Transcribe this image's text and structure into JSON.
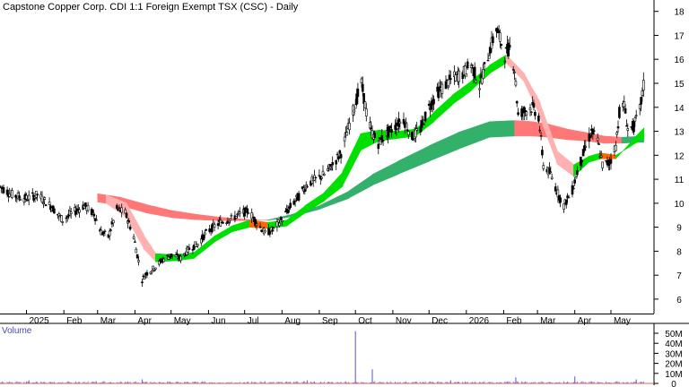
{
  "chart_data": {
    "type": "candlestick",
    "title": "Capstone Copper Corp. CDI 1:1 Foreign Exempt TSX (CSC) - Daily",
    "price_axis": {
      "min": 5.4,
      "max": 18.4,
      "ticks": [
        6,
        7,
        8,
        9,
        10,
        11,
        12,
        13,
        14,
        15,
        16,
        17,
        18
      ]
    },
    "x_axis": {
      "start": "2024-12-10",
      "end": "2026-06-05",
      "month_labels": [
        {
          "label": "2025",
          "date": "2025-01-01"
        },
        {
          "label": "Feb",
          "date": "2025-02-01"
        },
        {
          "label": "Mar",
          "date": "2025-03-01"
        },
        {
          "label": "Apr",
          "date": "2025-04-01"
        },
        {
          "label": "May",
          "date": "2025-05-01"
        },
        {
          "label": "Jun",
          "date": "2025-06-01"
        },
        {
          "label": "Jul",
          "date": "2025-07-01"
        },
        {
          "label": "Aug",
          "date": "2025-08-01"
        },
        {
          "label": "Sep",
          "date": "2025-09-01"
        },
        {
          "label": "Oct",
          "date": "2025-10-01"
        },
        {
          "label": "Nov",
          "date": "2025-11-01"
        },
        {
          "label": "Dec",
          "date": "2025-12-01"
        },
        {
          "label": "2026",
          "date": "2026-01-01"
        },
        {
          "label": "Feb",
          "date": "2026-02-01"
        },
        {
          "label": "Mar",
          "date": "2026-03-01"
        },
        {
          "label": "Apr",
          "date": "2026-04-01"
        },
        {
          "label": "May",
          "date": "2026-05-01"
        }
      ]
    },
    "price_path": [
      [
        "2024-12-10",
        10.7
      ],
      [
        "2024-12-20",
        10.35
      ],
      [
        "2025-01-01",
        10.2
      ],
      [
        "2025-01-10",
        10.35
      ],
      [
        "2025-01-22",
        9.85
      ],
      [
        "2025-01-31",
        9.3
      ],
      [
        "2025-02-08",
        9.6
      ],
      [
        "2025-02-18",
        9.9
      ],
      [
        "2025-02-26",
        9.55
      ],
      [
        "2025-03-04",
        8.8
      ],
      [
        "2025-03-10",
        8.6
      ],
      [
        "2025-03-17",
        9.75
      ],
      [
        "2025-03-24",
        9.6
      ],
      [
        "2025-03-31",
        8.6
      ],
      [
        "2025-04-07",
        6.8
      ],
      [
        "2025-04-10",
        7.05
      ],
      [
        "2025-04-17",
        7.3
      ],
      [
        "2025-04-24",
        7.65
      ],
      [
        "2025-05-02",
        7.85
      ],
      [
        "2025-05-09",
        7.7
      ],
      [
        "2025-05-16",
        8.1
      ],
      [
        "2025-05-23",
        8.3
      ],
      [
        "2025-05-30",
        8.75
      ],
      [
        "2025-06-06",
        9.05
      ],
      [
        "2025-06-13",
        9.25
      ],
      [
        "2025-06-20",
        9.35
      ],
      [
        "2025-06-27",
        9.55
      ],
      [
        "2025-07-04",
        9.7
      ],
      [
        "2025-07-11",
        9.2
      ],
      [
        "2025-07-18",
        8.75
      ],
      [
        "2025-07-25",
        8.9
      ],
      [
        "2025-08-01",
        9.35
      ],
      [
        "2025-08-08",
        9.85
      ],
      [
        "2025-08-15",
        10.3
      ],
      [
        "2025-08-22",
        10.8
      ],
      [
        "2025-08-29",
        11.0
      ],
      [
        "2025-09-05",
        11.2
      ],
      [
        "2025-09-12",
        11.6
      ],
      [
        "2025-09-19",
        12.1
      ],
      [
        "2025-09-26",
        13.3
      ],
      [
        "2025-10-01",
        14.2
      ],
      [
        "2025-10-06",
        15.0
      ],
      [
        "2025-10-10",
        13.8
      ],
      [
        "2025-10-14",
        13.0
      ],
      [
        "2025-10-20",
        12.5
      ],
      [
        "2025-10-27",
        12.9
      ],
      [
        "2025-11-03",
        13.2
      ],
      [
        "2025-11-10",
        13.5
      ],
      [
        "2025-11-17",
        12.75
      ],
      [
        "2025-11-24",
        13.1
      ],
      [
        "2025-12-01",
        14.0
      ],
      [
        "2025-12-08",
        14.6
      ],
      [
        "2025-12-15",
        14.95
      ],
      [
        "2025-12-22",
        15.25
      ],
      [
        "2025-12-29",
        15.4
      ],
      [
        "2026-01-05",
        15.8
      ],
      [
        "2026-01-12",
        14.9
      ],
      [
        "2026-01-19",
        16.15
      ],
      [
        "2026-01-26",
        17.3
      ],
      [
        "2026-02-02",
        16.2
      ],
      [
        "2026-02-06",
        16.5
      ],
      [
        "2026-02-10",
        15.6
      ],
      [
        "2026-02-13",
        13.7
      ],
      [
        "2026-02-18",
        13.85
      ],
      [
        "2026-02-25",
        14.0
      ],
      [
        "2026-03-02",
        13.6
      ],
      [
        "2026-03-06",
        11.6
      ],
      [
        "2026-03-12",
        11.2
      ],
      [
        "2026-03-18",
        10.4
      ],
      [
        "2026-03-23",
        9.9
      ],
      [
        "2026-03-30",
        10.55
      ],
      [
        "2026-04-03",
        11.3
      ],
      [
        "2026-04-09",
        12.2
      ],
      [
        "2026-04-15",
        13.0
      ],
      [
        "2026-04-20",
        12.6
      ],
      [
        "2026-04-24",
        11.6
      ],
      [
        "2026-04-30",
        11.7
      ],
      [
        "2026-05-05",
        12.4
      ],
      [
        "2026-05-08",
        13.8
      ],
      [
        "2026-05-12",
        14.1
      ],
      [
        "2026-05-15",
        13.1
      ],
      [
        "2026-05-20",
        13.2
      ],
      [
        "2026-05-25",
        13.9
      ],
      [
        "2026-05-28",
        14.9
      ]
    ],
    "short_ema_band": [
      [
        "2025-03-08",
        10.35,
        10.0
      ],
      [
        "2025-03-25",
        10.0,
        9.4
      ],
      [
        "2025-04-08",
        8.7,
        8.1
      ],
      [
        "2025-04-18",
        7.9,
        7.55
      ],
      [
        "2025-05-05",
        7.85,
        7.6
      ],
      [
        "2025-05-20",
        7.95,
        7.7
      ],
      [
        "2025-06-05",
        8.6,
        8.35
      ],
      [
        "2025-06-20",
        9.05,
        8.8
      ],
      [
        "2025-07-05",
        9.3,
        9.0
      ],
      [
        "2025-07-20",
        9.2,
        8.95
      ],
      [
        "2025-08-05",
        9.3,
        9.05
      ],
      [
        "2025-08-20",
        9.9,
        9.6
      ],
      [
        "2025-09-05",
        10.45,
        10.1
      ],
      [
        "2025-09-20",
        11.3,
        10.7
      ],
      [
        "2025-10-05",
        12.9,
        12.2
      ],
      [
        "2025-10-20",
        13.05,
        12.6
      ],
      [
        "2025-11-05",
        13.0,
        12.7
      ],
      [
        "2025-11-20",
        13.1,
        12.8
      ],
      [
        "2025-12-05",
        13.8,
        13.4
      ],
      [
        "2025-12-20",
        14.5,
        14.1
      ],
      [
        "2026-01-05",
        15.1,
        14.7
      ],
      [
        "2026-01-20",
        15.75,
        15.4
      ],
      [
        "2026-02-03",
        16.2,
        15.85
      ],
      [
        "2026-02-18",
        15.4,
        15.05
      ],
      [
        "2026-03-03",
        14.2,
        13.6
      ],
      [
        "2026-03-17",
        12.2,
        11.65
      ],
      [
        "2026-03-31",
        11.6,
        11.1
      ],
      [
        "2026-04-12",
        11.95,
        11.7
      ],
      [
        "2026-04-22",
        12.1,
        11.85
      ],
      [
        "2026-05-05",
        12.0,
        11.85
      ],
      [
        "2026-05-18",
        12.4,
        12.6
      ],
      [
        "2026-05-28",
        12.7,
        13.15
      ]
    ],
    "long_ema_band": [
      [
        "2025-03-01",
        10.4,
        10.05
      ],
      [
        "2025-03-20",
        10.25,
        9.9
      ],
      [
        "2025-04-10",
        9.95,
        9.6
      ],
      [
        "2025-05-01",
        9.7,
        9.4
      ],
      [
        "2025-05-20",
        9.55,
        9.32
      ],
      [
        "2025-06-10",
        9.42,
        9.27
      ],
      [
        "2025-07-01",
        9.33,
        9.27
      ],
      [
        "2025-07-20",
        9.28,
        9.3
      ],
      [
        "2025-08-10",
        9.45,
        9.55
      ],
      [
        "2025-09-01",
        9.75,
        9.9
      ],
      [
        "2025-09-25",
        10.2,
        10.5
      ],
      [
        "2025-10-15",
        10.75,
        11.2
      ],
      [
        "2025-11-05",
        11.2,
        11.75
      ],
      [
        "2025-12-01",
        11.75,
        12.4
      ],
      [
        "2025-12-25",
        12.25,
        12.95
      ],
      [
        "2026-01-20",
        12.75,
        13.4
      ],
      [
        "2026-02-10",
        12.8,
        13.45
      ],
      [
        "2026-02-25",
        12.8,
        13.4
      ],
      [
        "2026-03-10",
        12.75,
        13.3
      ],
      [
        "2026-03-25",
        12.65,
        13.1
      ],
      [
        "2026-04-10",
        12.6,
        12.95
      ],
      [
        "2026-04-25",
        12.5,
        12.8
      ],
      [
        "2026-05-10",
        12.5,
        12.75
      ],
      [
        "2026-05-28",
        12.55,
        12.8
      ]
    ],
    "volume": {
      "title": "Volume",
      "axis": {
        "max": 58,
        "ticks": [
          {
            "label": "50M",
            "value": 50
          },
          {
            "label": "40M",
            "value": 40
          },
          {
            "label": "30M",
            "value": 30
          },
          {
            "label": "20M",
            "value": 20
          },
          {
            "label": "10M",
            "value": 10
          },
          {
            "label": "0",
            "value": 0
          }
        ]
      },
      "spikes": [
        [
          "2025-10-01",
          52
        ],
        [
          "2025-10-15",
          14
        ],
        [
          "2026-04-01",
          7
        ],
        [
          "2026-02-11",
          6
        ],
        [
          "2025-04-07",
          4
        ],
        [
          "2025-01-03",
          3
        ],
        [
          "2025-08-22",
          3
        ],
        [
          "2026-05-22",
          4
        ],
        [
          "2025-12-19",
          3
        ]
      ]
    },
    "colors": {
      "up_band": "#00e000",
      "down_band": "#ff6600",
      "long_up_band": "#33b06a",
      "long_down_band": "#ff7777",
      "pale_down": "#ffb0b0",
      "volume": "#7070d0",
      "axis": "#000000"
    }
  }
}
